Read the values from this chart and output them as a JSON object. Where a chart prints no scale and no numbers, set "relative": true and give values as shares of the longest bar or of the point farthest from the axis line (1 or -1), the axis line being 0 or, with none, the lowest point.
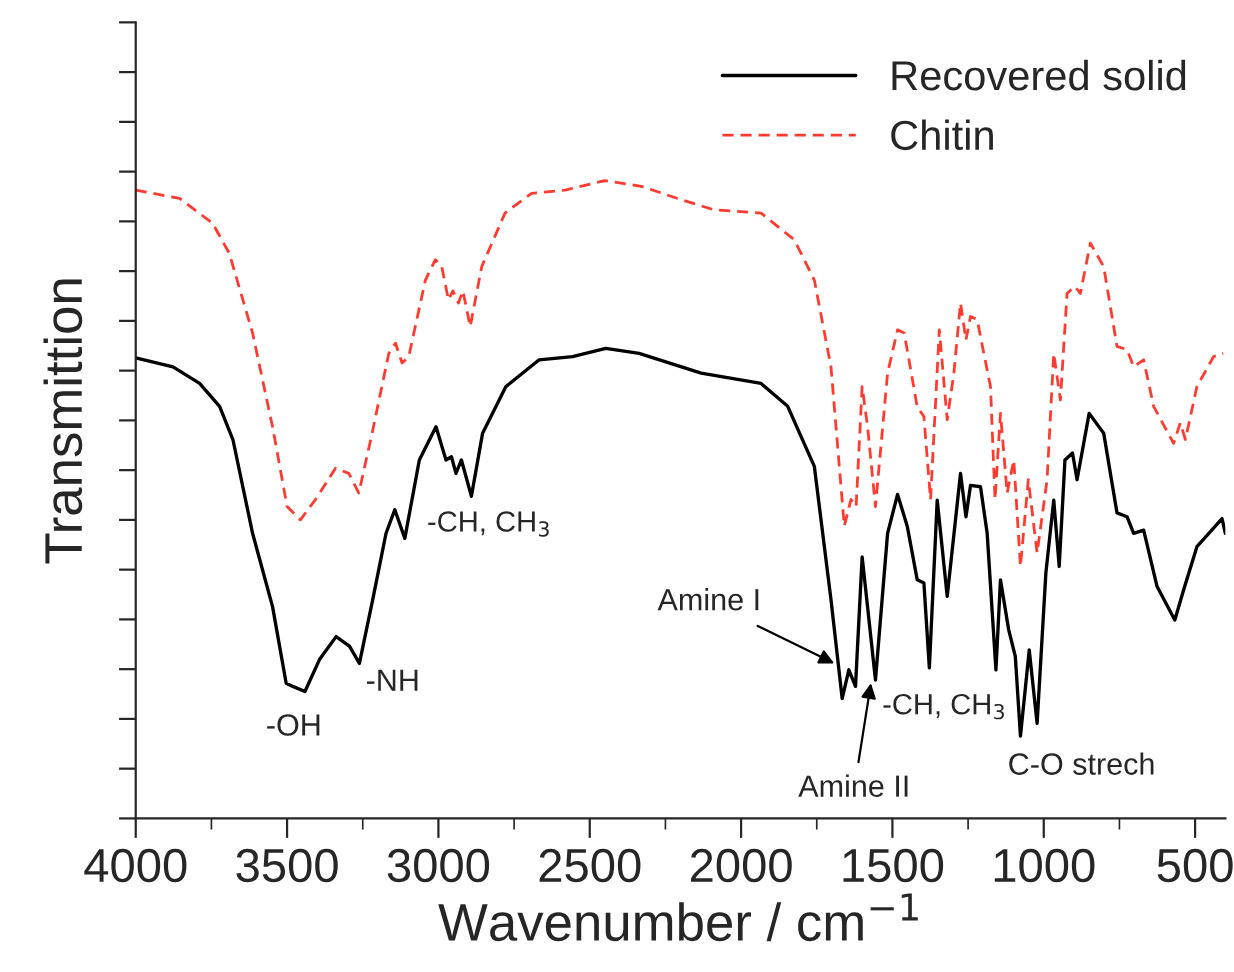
{
  "chart_data": {
    "type": "line",
    "relative": true,
    "xlabel": "Wavenumber / cm$^{−1}$",
    "ylabel": "Transmittion",
    "xlim": [
      4000,
      400
    ],
    "xticks": [
      4000,
      {
        "value": 3750,
        "label": null
      },
      3500,
      {
        "value": 3250,
        "label": null
      },
      3000,
      {
        "value": 2750,
        "label": null
      },
      2500,
      {
        "value": 2250,
        "label": null
      },
      2000,
      {
        "value": 1750,
        "label": null
      },
      1500,
      {
        "value": 1250,
        "label": null
      },
      1000,
      {
        "value": 750,
        "label": null
      },
      500
    ],
    "legend": "top right",
    "grid": false,
    "series": [
      {
        "name": "Recovered solid",
        "color": "#000000",
        "line_style": "solid",
        "x": [
          4000,
          3877,
          3789,
          3723,
          3679,
          3614,
          3548,
          3503,
          3481,
          3441,
          3393,
          3338,
          3294,
          3261,
          3217,
          3173,
          3144,
          3111,
          3063,
          3008,
          2975,
          2957,
          2942,
          2924,
          2891,
          2854,
          2777,
          2667,
          2557,
          2447,
          2337,
          2132,
          1934,
          1846,
          1758,
          1703,
          1666,
          1644,
          1622,
          1600,
          1556,
          1516,
          1483,
          1451,
          1418,
          1396,
          1378,
          1352,
          1319,
          1275,
          1257,
          1242,
          1209,
          1187,
          1158,
          1143,
          1116,
          1094,
          1077,
          1048,
          1022,
          993,
          967,
          949,
          930,
          905,
          890,
          850,
          802,
          758,
          725,
          703,
          670,
          626,
          567,
          538,
          494,
          439,
          411,
          400
        ],
        "values": [
          0.722,
          0.708,
          0.682,
          0.646,
          0.594,
          0.447,
          0.332,
          0.212,
          0.207,
          0.199,
          0.249,
          0.285,
          0.27,
          0.243,
          0.343,
          0.447,
          0.484,
          0.439,
          0.562,
          0.614,
          0.562,
          0.567,
          0.541,
          0.562,
          0.505,
          0.604,
          0.677,
          0.719,
          0.724,
          0.737,
          0.729,
          0.698,
          0.682,
          0.646,
          0.552,
          0.343,
          0.188,
          0.233,
          0.207,
          0.41,
          0.217,
          0.447,
          0.508,
          0.458,
          0.374,
          0.369,
          0.236,
          0.499,
          0.348,
          0.541,
          0.473,
          0.522,
          0.52,
          0.447,
          0.233,
          0.374,
          0.296,
          0.254,
          0.129,
          0.264,
          0.149,
          0.385,
          0.499,
          0.395,
          0.562,
          0.573,
          0.531,
          0.635,
          0.604,
          0.479,
          0.473,
          0.447,
          0.452,
          0.364,
          0.311,
          0.358,
          0.426,
          0.455,
          0.47,
          0.447
        ]
      },
      {
        "name": "Chitin",
        "color": "#ff3b30",
        "line_style": "dashed",
        "x": [
          4000,
          3855,
          3746,
          3691,
          3614,
          3548,
          3500,
          3456,
          3406,
          3340,
          3296,
          3263,
          3219,
          3164,
          3142,
          3120,
          3098,
          3043,
          3010,
          2989,
          2967,
          2952,
          2934,
          2919,
          2895,
          2857,
          2780,
          2692,
          2582,
          2450,
          2330,
          2198,
          2088,
          1934,
          1824,
          1758,
          1703,
          1659,
          1637,
          1620,
          1600,
          1582,
          1556,
          1516,
          1483,
          1461,
          1418,
          1396,
          1374,
          1345,
          1319,
          1297,
          1275,
          1257,
          1242,
          1220,
          1198,
          1176,
          1161,
          1143,
          1121,
          1099,
          1077,
          1051,
          1022,
          989,
          967,
          945,
          923,
          897,
          879,
          846,
          802,
          758,
          725,
          703,
          670,
          637,
          571,
          549,
          532,
          494,
          439,
          407
        ],
        "values": [
          0.985,
          0.972,
          0.933,
          0.886,
          0.761,
          0.614,
          0.489,
          0.468,
          0.5,
          0.549,
          0.541,
          0.51,
          0.604,
          0.729,
          0.745,
          0.714,
          0.724,
          0.844,
          0.876,
          0.865,
          0.813,
          0.827,
          0.808,
          0.827,
          0.771,
          0.865,
          0.949,
          0.98,
          0.985,
          1.0,
          0.991,
          0.97,
          0.954,
          0.949,
          0.907,
          0.844,
          0.708,
          0.458,
          0.5,
          0.489,
          0.677,
          0.614,
          0.489,
          0.698,
          0.766,
          0.761,
          0.645,
          0.63,
          0.5,
          0.766,
          0.625,
          0.698,
          0.808,
          0.75,
          0.787,
          0.782,
          0.729,
          0.677,
          0.5,
          0.635,
          0.51,
          0.562,
          0.395,
          0.531,
          0.416,
          0.531,
          0.729,
          0.656,
          0.823,
          0.834,
          0.823,
          0.902,
          0.865,
          0.74,
          0.735,
          0.708,
          0.719,
          0.646,
          0.588,
          0.62,
          0.594,
          0.677,
          0.724,
          0.729
        ]
      }
    ],
    "annotations": [
      {
        "text": "-OH",
        "x": 3441,
        "y": 0.199
      },
      {
        "text": "-NH",
        "x": 3261,
        "y": 0.243
      },
      {
        "text": "-CH, CH$_{3}$",
        "x": 2891,
        "y": 0.505
      },
      {
        "text": "Amine I",
        "x": 1692,
        "y": 0.243
      },
      {
        "text": "Amine II",
        "x": 1571,
        "y": 0.212
      },
      {
        "text": "-CH, CH$_{3}$",
        "x": 1378,
        "y": 0.236
      },
      {
        "text": "C-O strech",
        "x": 1077,
        "y": 0.129
      }
    ]
  }
}
